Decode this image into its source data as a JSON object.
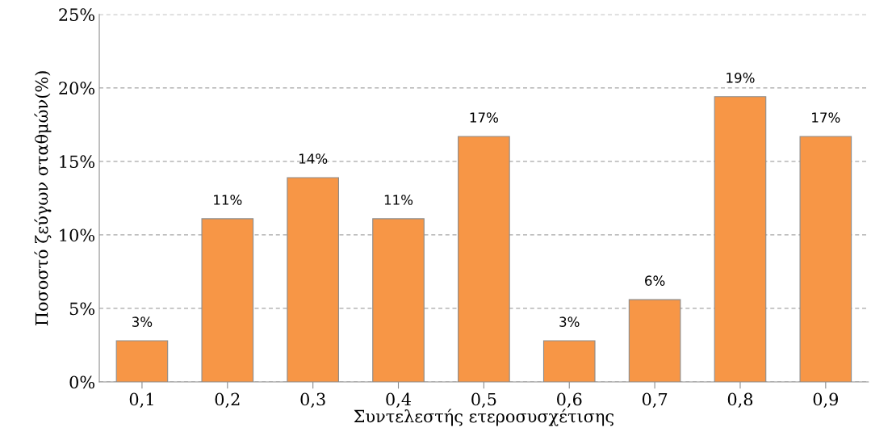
{
  "chart_data": {
    "type": "bar",
    "xlabel": "Συντελεστής ετεροσυσχέτισης",
    "ylabel": "Ποσοστό ζεύγων σταθμών(%)",
    "categories": [
      "0,1",
      "0,2",
      "0,3",
      "0,4",
      "0,5",
      "0,6",
      "0,7",
      "0,8",
      "0,9"
    ],
    "values": [
      2.8,
      11.1,
      13.9,
      11.1,
      16.7,
      2.8,
      5.6,
      19.4,
      16.7
    ],
    "value_labels": [
      "3%",
      "11%",
      "14%",
      "11%",
      "17%",
      "3%",
      "6%",
      "19%",
      "17%"
    ],
    "color": "#f79646",
    "ylim": [
      0,
      25
    ],
    "yticks": [
      {
        "value": 0,
        "label": "0%"
      },
      {
        "value": 5,
        "label": "5%"
      },
      {
        "value": 10,
        "label": "10%"
      },
      {
        "value": 15,
        "label": "15%"
      },
      {
        "value": 20,
        "label": "20%"
      },
      {
        "value": 25,
        "label": "25%"
      }
    ],
    "grid": "y"
  }
}
